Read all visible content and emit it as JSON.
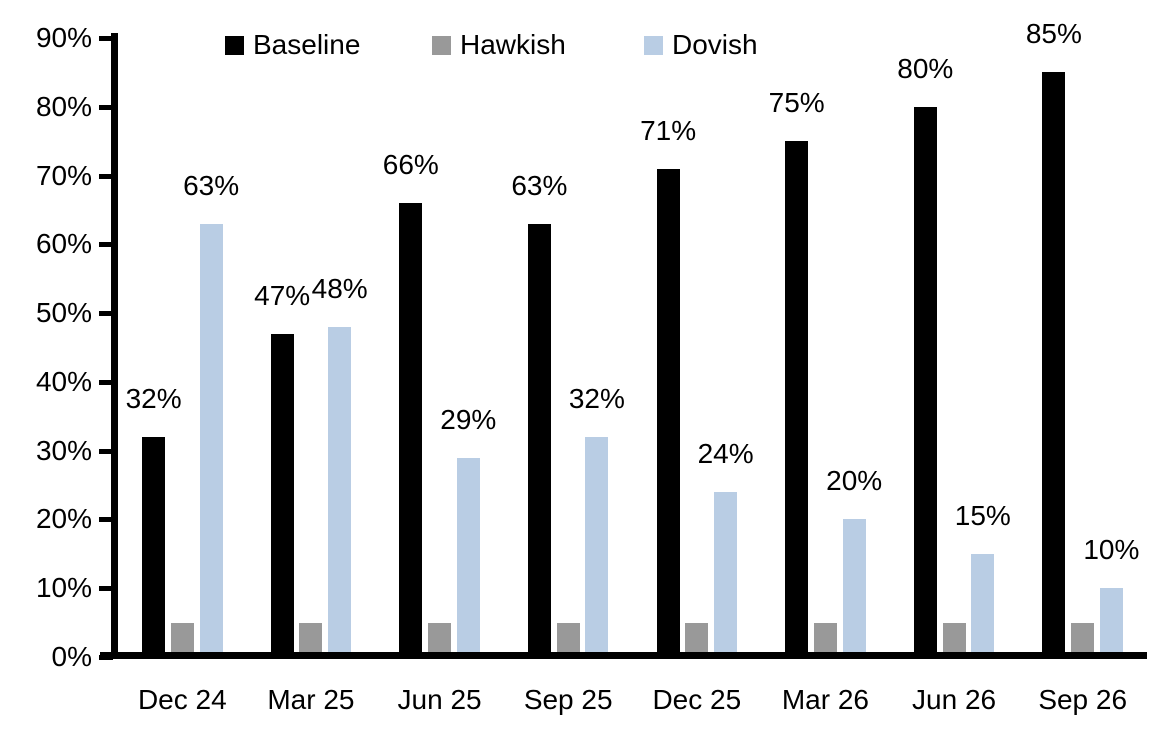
{
  "chart_data": {
    "type": "bar",
    "title": "",
    "xlabel": "",
    "ylabel": "",
    "categories": [
      "Dec 24",
      "Mar 25",
      "Jun 25",
      "Sep 25",
      "Dec 25",
      "Mar 26",
      "Jun 26",
      "Sep 26"
    ],
    "series": [
      {
        "name": "Baseline",
        "color": "#000000",
        "values": [
          32,
          47,
          66,
          63,
          71,
          75,
          80,
          85
        ],
        "labels": [
          "32%",
          "47%",
          "66%",
          "63%",
          "71%",
          "75%",
          "80%",
          "85%"
        ]
      },
      {
        "name": "Hawkish",
        "color": "#999999",
        "values": [
          5,
          5,
          5,
          5,
          5,
          5,
          5,
          5
        ],
        "labels": null
      },
      {
        "name": "Dovish",
        "color": "#B9CDE4",
        "values": [
          63,
          48,
          29,
          32,
          24,
          20,
          15,
          10
        ],
        "labels": [
          "63%",
          "48%",
          "29%",
          "32%",
          "24%",
          "20%",
          "15%",
          "10%"
        ]
      }
    ],
    "ylim": [
      0,
      90
    ],
    "ytick_step": 10,
    "ytick_labels": [
      "0%",
      "10%",
      "20%",
      "30%",
      "40%",
      "50%",
      "60%",
      "70%",
      "80%",
      "90%"
    ],
    "grid": false,
    "legend_position": "top"
  }
}
